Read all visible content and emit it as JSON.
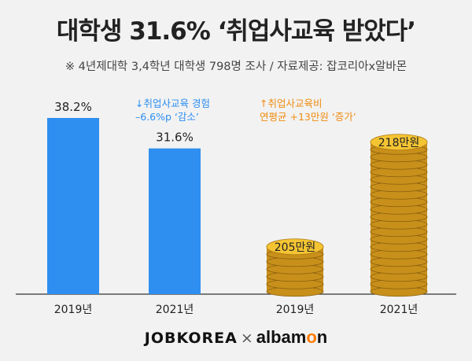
{
  "title": "대학생 31.6% ‘취업사교육 받았다’",
  "subtitle": "※ 4년제대학 3,4학년 대학생 798명 조사 / 자료제공: 잡코리아x알바몬",
  "footer": {
    "left": "JOBKOREA",
    "sep": "×",
    "right_a": "albam",
    "right_b": "o",
    "right_c": "n"
  },
  "colors": {
    "bar": "#2e8ff0",
    "rate_note": "#2e8ff0",
    "cost_note": "#ef8c11",
    "coin_fill": "#f4c433",
    "coin_edge": "#c8901a"
  },
  "chart_data": [
    {
      "type": "bar",
      "categories": [
        "2019년",
        "2021년"
      ],
      "values": [
        38.2,
        31.6
      ],
      "labels": [
        "38.2%",
        "31.6%"
      ],
      "ylim": [
        0,
        48
      ],
      "annotation": [
        "↓취업사교육 경험",
        "–6.6%p ‘감소’"
      ]
    },
    {
      "type": "bar",
      "categories": [
        "2019년",
        "2021년"
      ],
      "values": [
        205,
        218
      ],
      "labels": [
        "205만원",
        "218만원"
      ],
      "annotation": [
        "↑취업사교육비",
        "연평균 +13만원 ‘증가’"
      ]
    }
  ]
}
